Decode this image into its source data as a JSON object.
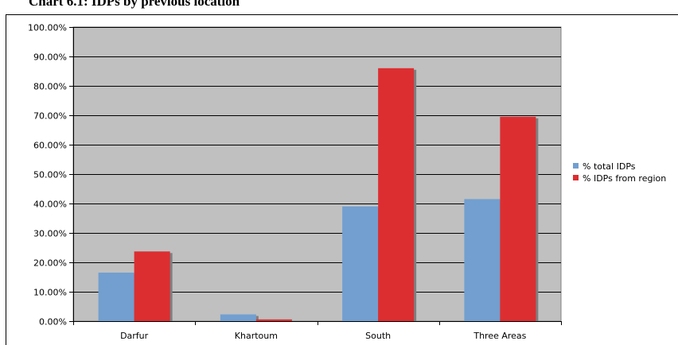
{
  "chart_data": {
    "type": "bar",
    "title": "Chart 6.1: IDPs by previous location",
    "xlabel": "",
    "ylabel": "",
    "categories": [
      "Darfur",
      "Khartoum",
      "South",
      "Three Areas"
    ],
    "series": [
      {
        "name": "% total IDPs",
        "color": "#729fcf",
        "values": [
          16.5,
          2.3,
          39.0,
          41.5
        ]
      },
      {
        "name": "% IDPs from region",
        "color": "#dc2e31",
        "values": [
          23.7,
          0.6,
          86.0,
          69.5
        ]
      }
    ],
    "ylim": [
      0,
      100
    ],
    "yticks": [
      "0.00%",
      "10.00%",
      "20.00%",
      "30.00%",
      "40.00%",
      "50.00%",
      "60.00%",
      "70.00%",
      "80.00%",
      "90.00%",
      "100.00%"
    ],
    "ytick_values": [
      0,
      10,
      20,
      30,
      40,
      50,
      60,
      70,
      80,
      90,
      100
    ],
    "grid": true,
    "legend_position": "right",
    "plot_background": "#c0c0c0"
  }
}
